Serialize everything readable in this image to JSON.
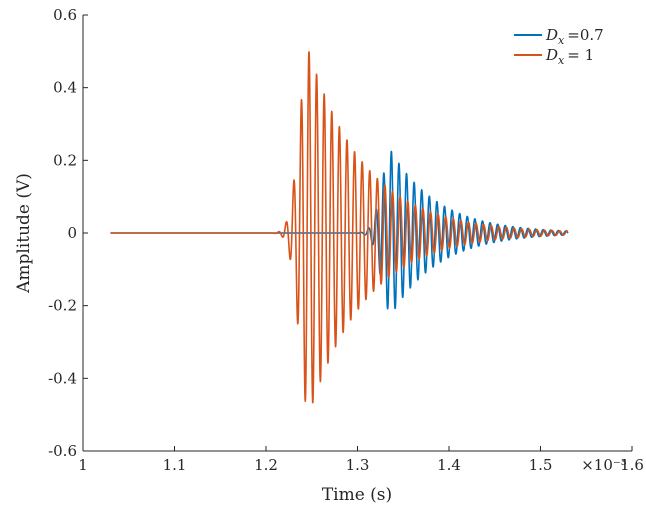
{
  "chart_data": {
    "type": "line",
    "title": "",
    "xlabel": "Time (s)",
    "ylabel": "Amplitude (V)",
    "x_exponent_label": "×10⁻³",
    "xlim": [
      1.0,
      1.6
    ],
    "ylim": [
      -0.6,
      0.6
    ],
    "x_ticks": [
      1.0,
      1.1,
      1.2,
      1.3,
      1.4,
      1.5,
      1.6
    ],
    "x_tick_labels": [
      "1",
      "1.1",
      "1.2",
      "1.3",
      "1.4",
      "1.5",
      "1.6"
    ],
    "y_ticks": [
      -0.6,
      -0.4,
      -0.2,
      0,
      0.2,
      0.4,
      0.6
    ],
    "y_tick_labels": [
      "-0.6",
      "-0.4",
      "-0.2",
      "0",
      "0.2",
      "0.4",
      "0.6"
    ],
    "grid": false,
    "legend_position": "top-right",
    "series": [
      {
        "name": "D_x =0.7",
        "legend_symbol": "D",
        "legend_sub": "x",
        "legend_value": "=0.7",
        "color": "#0072BD",
        "x_range": [
          1.03,
          1.53
        ],
        "onset": 1.3,
        "peak_time": 1.337,
        "peak_amplitude": 0.225,
        "rise_width": 0.022,
        "decay_time": 0.052,
        "period": 0.0083,
        "phase_offset": 0.0
      },
      {
        "name": "D_x = 1",
        "legend_symbol": "D",
        "legend_sub": "x",
        "legend_value": "= 1",
        "color": "#D95319",
        "x_range": [
          1.03,
          1.53
        ],
        "onset": 1.208,
        "peak_time": 1.247,
        "peak_amplitude": 0.5,
        "rise_width": 0.022,
        "decay_time": 0.062,
        "period": 0.0083,
        "phase_offset": 0.0
      }
    ]
  }
}
